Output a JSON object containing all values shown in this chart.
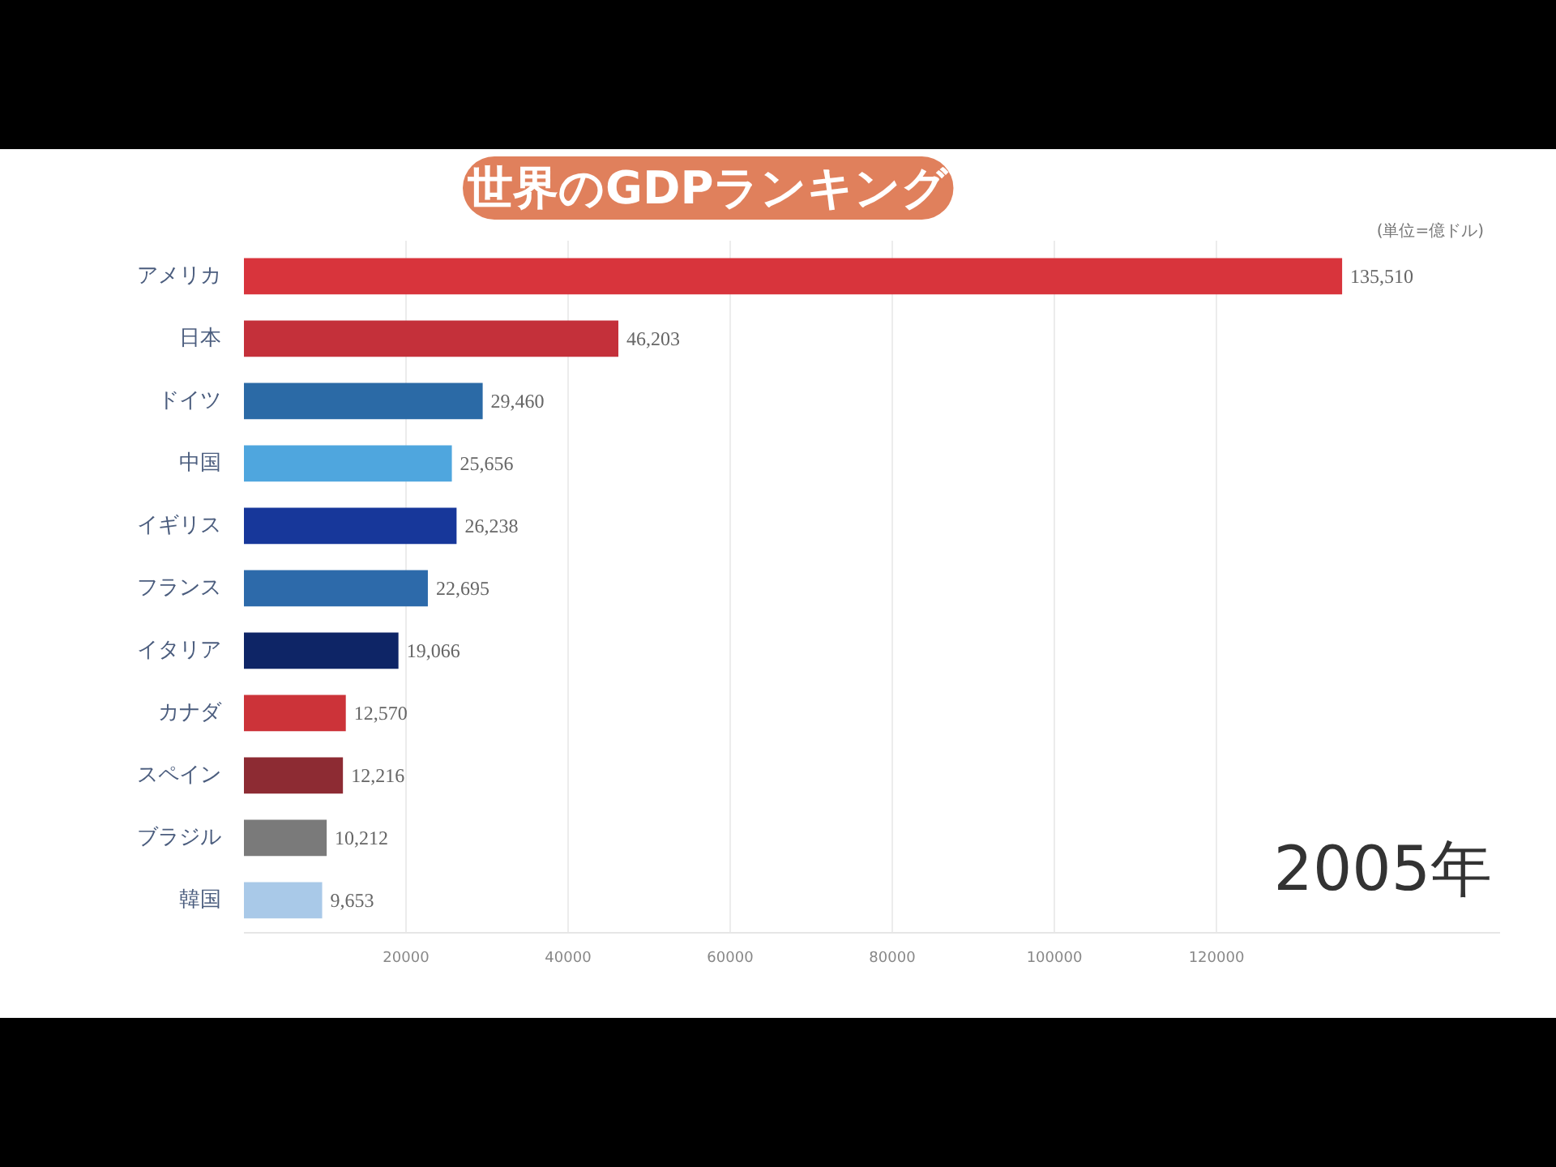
{
  "chart_data": {
    "type": "bar",
    "orientation": "horizontal",
    "title": "世界のGDPランキング",
    "subtitle": "(単位=億ドル)",
    "categories": [
      "アメリカ",
      "日本",
      "ドイツ",
      "中国",
      "イギリス",
      "フランス",
      "イタリア",
      "カナダ",
      "スペイン",
      "ブラジル",
      "韓国"
    ],
    "values": [
      135510,
      46203,
      29460,
      25656,
      26238,
      22695,
      19066,
      12570,
      12216,
      10212,
      9653
    ],
    "value_labels": [
      "135,510",
      "46,203",
      "29,460",
      "25,656",
      "26,238",
      "22,695",
      "19,066",
      "12,570",
      "12,216",
      "10,212",
      "9,653"
    ],
    "colors": [
      "#d8343c",
      "#c4303a",
      "#2b6aa6",
      "#4fa6de",
      "#17379a",
      "#2d6aaa",
      "#0e2566",
      "#cc3339",
      "#8d2b33",
      "#7a7a7a",
      "#a9c9e8"
    ],
    "xlim": [
      0,
      155000
    ],
    "xticks": [
      20000,
      40000,
      60000,
      80000,
      100000,
      120000
    ],
    "grid": "x",
    "annotations": [
      "2005年"
    ]
  }
}
